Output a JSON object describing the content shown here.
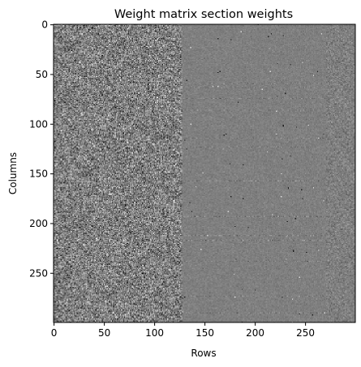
{
  "chart_data": {
    "type": "heatmap",
    "title": "Weight matrix section weights",
    "xlabel": "Rows",
    "ylabel": "Columns",
    "colormap": "gray",
    "rows": 300,
    "cols": 300,
    "x_ticks": [
      0,
      50,
      100,
      150,
      200,
      250
    ],
    "y_ticks": [
      0,
      50,
      100,
      150,
      200,
      250
    ],
    "xlim": [
      0,
      299
    ],
    "ylim": [
      299,
      0
    ],
    "y_inverted": true,
    "regions": [
      {
        "x_range": [
          0,
          127
        ],
        "spread": "high",
        "note": "noisy texture"
      },
      {
        "x_range": [
          128,
          299
        ],
        "spread": "low",
        "note": "mostly mid-gray with sparse outliers"
      }
    ],
    "grid": false,
    "legend": "none",
    "colors": {
      "background": "#ffffff",
      "mid": "#7f7f7f",
      "axis": "#000000"
    }
  }
}
